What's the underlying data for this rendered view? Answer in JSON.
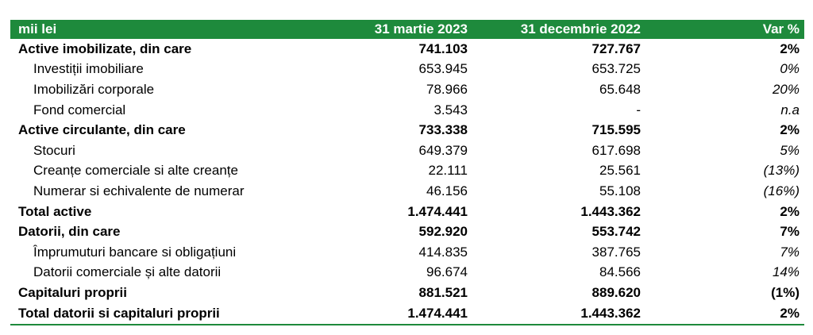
{
  "colors": {
    "header_bg": "#1e8a3c",
    "header_text": "#ffffff",
    "rule": "#1e8a3c"
  },
  "table": {
    "headers": [
      "mii lei",
      "31 martie 2023",
      "31 decembrie 2022",
      "Var %"
    ],
    "rows": [
      {
        "label": "Active imobilizate, din care",
        "v1": "741.103",
        "v2": "727.767",
        "var": "2%",
        "style": "bold"
      },
      {
        "label": "Investiții imobiliare",
        "v1": "653.945",
        "v2": "653.725",
        "var": "0%",
        "style": "sub"
      },
      {
        "label": "Imobilizări corporale",
        "v1": "78.966",
        "v2": "65.648",
        "var": "20%",
        "style": "sub"
      },
      {
        "label": "Fond comercial",
        "v1": "3.543",
        "v2": "-",
        "var": "n.a",
        "style": "sub"
      },
      {
        "label": "Active circulante, din care",
        "v1": "733.338",
        "v2": "715.595",
        "var": "2%",
        "style": "bold"
      },
      {
        "label": "Stocuri",
        "v1": "649.379",
        "v2": "617.698",
        "var": "5%",
        "style": "sub"
      },
      {
        "label": "Creanțe comerciale si alte creanțe",
        "v1": "22.111",
        "v2": "25.561",
        "var": "(13%)",
        "style": "sub"
      },
      {
        "label": "Numerar si echivalente de numerar",
        "v1": "46.156",
        "v2": "55.108",
        "var": "(16%)",
        "style": "sub"
      },
      {
        "label": "Total active",
        "v1": "1.474.441",
        "v2": "1.443.362",
        "var": "2%",
        "style": "bold"
      },
      {
        "label": "Datorii, din care",
        "v1": "592.920",
        "v2": "553.742",
        "var": "7%",
        "style": "bold"
      },
      {
        "label": "Împrumuturi bancare si obligațiuni",
        "v1": "414.835",
        "v2": "387.765",
        "var": "7%",
        "style": "sub"
      },
      {
        "label": "Datorii comerciale și alte datorii",
        "v1": "96.674",
        "v2": "84.566",
        "var": "14%",
        "style": "sub"
      },
      {
        "label": "Capitaluri proprii",
        "v1": "881.521",
        "v2": "889.620",
        "var": "(1%)",
        "style": "bold"
      },
      {
        "label": "Total datorii si capitaluri proprii",
        "v1": "1.474.441",
        "v2": "1.443.362",
        "var": "2%",
        "style": "bold"
      }
    ]
  }
}
